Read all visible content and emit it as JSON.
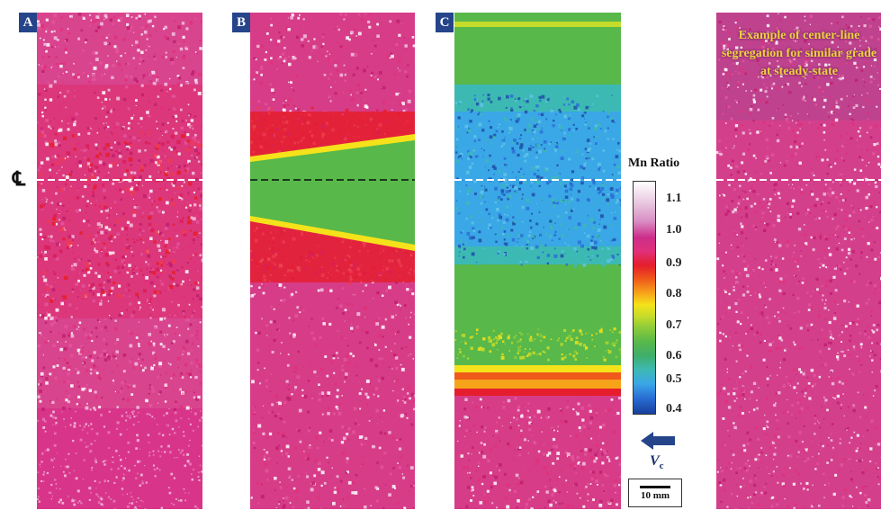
{
  "panels": [
    {
      "label": "A",
      "name": "panel-a",
      "kind": "pink-random"
    },
    {
      "label": "B",
      "name": "panel-b",
      "kind": "pink-wedge"
    },
    {
      "label": "C",
      "name": "panel-c",
      "kind": "green-band"
    },
    {
      "label": "",
      "name": "panel-d",
      "kind": "pink-uniform"
    }
  ],
  "centerline_symbol": "℄",
  "legend": {
    "title": "Mn Ratio",
    "ticks": [
      "1.1",
      "1.0",
      "0.9",
      "0.8",
      "0.7",
      "0.6",
      "0.5",
      "0.4"
    ],
    "colors": {
      "high": "#ffffff",
      "pink": "#d62f86",
      "red": "#e51d2c",
      "yellow": "#f5e21a",
      "green": "#58b84a",
      "cyan": "#3db9b4",
      "blue": "#173f9c"
    }
  },
  "velocity_label": "V",
  "velocity_subscript": "c",
  "scale_label": "10 mm",
  "example_caption": "Example of center-line segregation for similar grade at steady-state"
}
